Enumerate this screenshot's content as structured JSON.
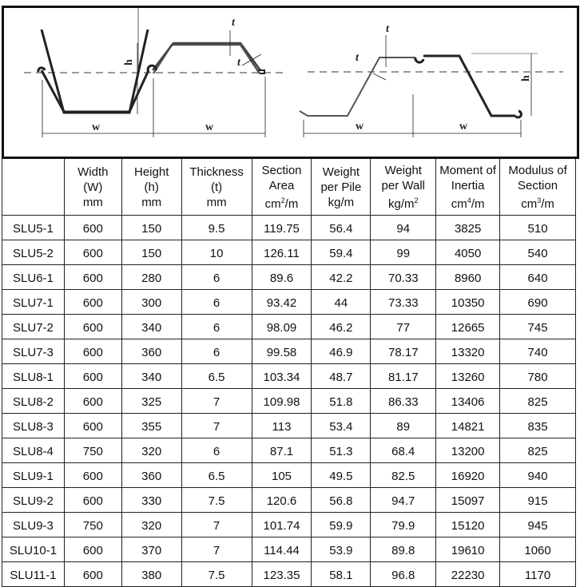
{
  "diagram": {
    "labels": {
      "width": "w",
      "height": "h",
      "thickness": "t"
    }
  },
  "table": {
    "headers": [
      {
        "lines": [
          "",
          "",
          " "
        ]
      },
      {
        "lines": [
          "Width",
          "(W)",
          "mm"
        ]
      },
      {
        "lines": [
          "Height",
          "(h)",
          "mm"
        ]
      },
      {
        "lines": [
          "Thickness",
          "(t)",
          "mm"
        ]
      },
      {
        "lines": [
          "Section",
          "Area",
          "cm",
          "2",
          "/m"
        ]
      },
      {
        "lines": [
          "Weight",
          "per Pile",
          "kg/m"
        ]
      },
      {
        "lines": [
          "Weight",
          "per Wall",
          "kg/m",
          "2"
        ]
      },
      {
        "lines": [
          "Moment of",
          "Inertia",
          "cm",
          "4",
          "/m"
        ]
      },
      {
        "lines": [
          "Modulus of",
          "Section",
          "cm",
          "3",
          "/m"
        ]
      }
    ],
    "rows": [
      [
        "SLU5-1",
        "600",
        "150",
        "9.5",
        "119.75",
        "56.4",
        "94",
        "3825",
        "510"
      ],
      [
        "SLU5-2",
        "600",
        "150",
        "10",
        "126.11",
        "59.4",
        "99",
        "4050",
        "540"
      ],
      [
        "SLU6-1",
        "600",
        "280",
        "6",
        "89.6",
        "42.2",
        "70.33",
        "8960",
        "640"
      ],
      [
        "SLU7-1",
        "600",
        "300",
        "6",
        "93.42",
        "44",
        "73.33",
        "10350",
        "690"
      ],
      [
        "SLU7-2",
        "600",
        "340",
        "6",
        "98.09",
        "46.2",
        "77",
        "12665",
        "745"
      ],
      [
        "SLU7-3",
        "600",
        "360",
        "6",
        "99.58",
        "46.9",
        "78.17",
        "13320",
        "740"
      ],
      [
        "SLU8-1",
        "600",
        "340",
        "6.5",
        "103.34",
        "48.7",
        "81.17",
        "13260",
        "780"
      ],
      [
        "SLU8-2",
        "600",
        "325",
        "7",
        "109.98",
        "51.8",
        "86.33",
        "13406",
        "825"
      ],
      [
        "SLU8-3",
        "600",
        "355",
        "7",
        "113",
        "53.4",
        "89",
        "14821",
        "835"
      ],
      [
        "SLU8-4",
        "750",
        "320",
        "6",
        "87.1",
        "51.3",
        "68.4",
        "13200",
        "825"
      ],
      [
        "SLU9-1",
        "600",
        "360",
        "6.5",
        "105",
        "49.5",
        "82.5",
        "16920",
        "940"
      ],
      [
        "SLU9-2",
        "600",
        "330",
        "7.5",
        "120.6",
        "56.8",
        "94.7",
        "15097",
        "915"
      ],
      [
        "SLU9-3",
        "750",
        "320",
        "7",
        "101.74",
        "59.9",
        "79.9",
        "15120",
        "945"
      ],
      [
        "SLU10-1",
        "600",
        "370",
        "7",
        "114.44",
        "53.9",
        "89.8",
        "19610",
        "1060"
      ],
      [
        "SLU11-1",
        "600",
        "380",
        "7.5",
        "123.35",
        "58.1",
        "96.8",
        "22230",
        "1170"
      ]
    ]
  }
}
